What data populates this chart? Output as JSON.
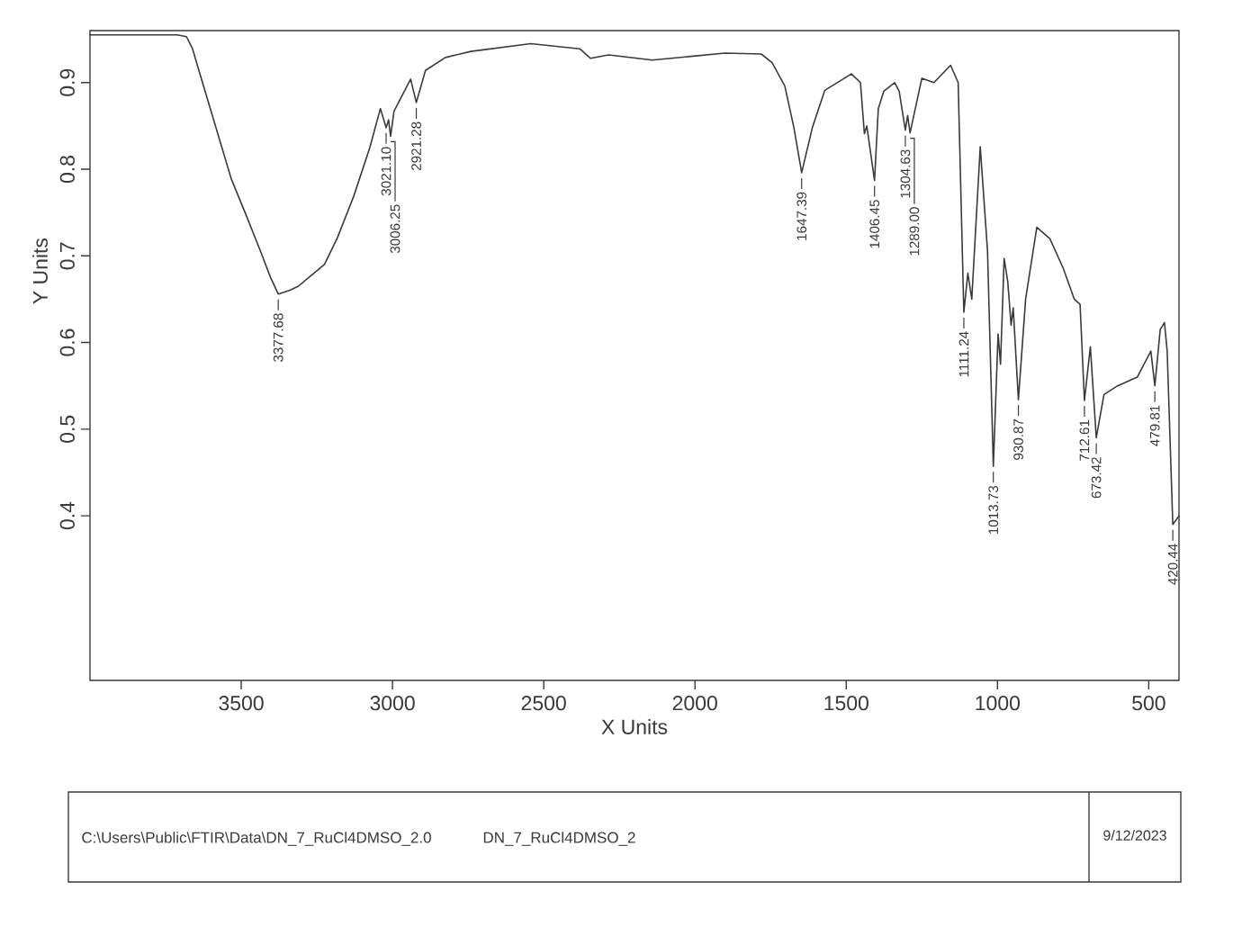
{
  "chart_data": {
    "type": "line",
    "xlabel": "X Units",
    "ylabel": "Y Units",
    "xlim": [
      4000,
      400
    ],
    "ylim": [
      0.21,
      0.96
    ],
    "xticks": [
      3500,
      3000,
      2500,
      2000,
      1500,
      1000,
      500
    ],
    "yticks": [
      0.4,
      0.5,
      0.6,
      0.7,
      0.8,
      0.9
    ],
    "x": [
      4000,
      3712,
      3681,
      3661,
      3640,
      3604,
      3569,
      3533,
      3485,
      3437,
      3403,
      3377.68,
      3341,
      3311,
      3277,
      3225,
      3182,
      3128,
      3075,
      3040,
      3021.1,
      3013,
      3006.25,
      2995,
      2940,
      2921.28,
      2891,
      2825,
      2741,
      2543,
      2381,
      2345,
      2285,
      2141,
      2021,
      1901,
      1781,
      1745,
      1703,
      1673,
      1647.39,
      1612,
      1571,
      1483,
      1453,
      1440,
      1432,
      1406.45,
      1394,
      1376,
      1340,
      1325,
      1304.63,
      1297,
      1289.0,
      1250,
      1210,
      1155,
      1145,
      1130,
      1111.24,
      1098,
      1085,
      1057,
      1033,
      1013.73,
      998,
      990,
      978,
      966,
      955,
      948,
      930.87,
      907,
      870,
      827,
      783,
      746,
      727,
      712.61,
      693,
      673.42,
      648,
      603,
      538,
      493,
      479.81,
      462,
      448,
      439,
      420.44,
      400
    ],
    "series": [
      {
        "color": "#3a3a3a",
        "values": [
          0.955,
          0.955,
          0.953,
          0.939,
          0.914,
          0.872,
          0.831,
          0.789,
          0.748,
          0.706,
          0.675,
          0.656,
          0.66,
          0.665,
          0.675,
          0.69,
          0.721,
          0.769,
          0.825,
          0.87,
          0.848,
          0.857,
          0.838,
          0.867,
          0.904,
          0.877,
          0.914,
          0.929,
          0.936,
          0.945,
          0.939,
          0.928,
          0.932,
          0.926,
          0.93,
          0.934,
          0.933,
          0.923,
          0.896,
          0.848,
          0.796,
          0.848,
          0.891,
          0.91,
          0.9,
          0.841,
          0.85,
          0.787,
          0.87,
          0.89,
          0.9,
          0.89,
          0.845,
          0.862,
          0.842,
          0.905,
          0.9,
          0.92,
          0.912,
          0.9,
          0.635,
          0.68,
          0.65,
          0.826,
          0.706,
          0.457,
          0.61,
          0.575,
          0.697,
          0.67,
          0.62,
          0.64,
          0.534,
          0.65,
          0.733,
          0.72,
          0.686,
          0.65,
          0.644,
          0.533,
          0.595,
          0.49,
          0.54,
          0.55,
          0.56,
          0.59,
          0.55,
          0.615,
          0.623,
          0.59,
          0.39,
          0.4
        ]
      }
    ],
    "annotations": [
      {
        "text": "3377.68",
        "x": 3377.68,
        "y": 0.656
      },
      {
        "text": "3021.10",
        "x": 3021.1,
        "y": 0.848
      },
      {
        "text": "3006.25",
        "x": 3006.25,
        "y": 0.838
      },
      {
        "text": "2921.28",
        "x": 2921.28,
        "y": 0.877
      },
      {
        "text": "1647.39",
        "x": 1647.39,
        "y": 0.796
      },
      {
        "text": "1406.45",
        "x": 1406.45,
        "y": 0.787
      },
      {
        "text": "1304.63",
        "x": 1304.63,
        "y": 0.845
      },
      {
        "text": "1289.00",
        "x": 1289.0,
        "y": 0.842
      },
      {
        "text": "1111.24",
        "x": 1111.24,
        "y": 0.635
      },
      {
        "text": "1013.73",
        "x": 1013.73,
        "y": 0.457
      },
      {
        "text": "930.87",
        "x": 930.87,
        "y": 0.534
      },
      {
        "text": "712.61",
        "x": 712.61,
        "y": 0.533
      },
      {
        "text": "673.42",
        "x": 673.42,
        "y": 0.49
      },
      {
        "text": "479.81",
        "x": 479.81,
        "y": 0.55
      },
      {
        "text": "420.44",
        "x": 420.44,
        "y": 0.39
      },
      "C:\\Users\\Public\\FTIR\\Data\\DN_7_RuCl4DMSO_2.0",
      "DN_7_RuCl4DMSO_2",
      "9/12/2023"
    ]
  }
}
